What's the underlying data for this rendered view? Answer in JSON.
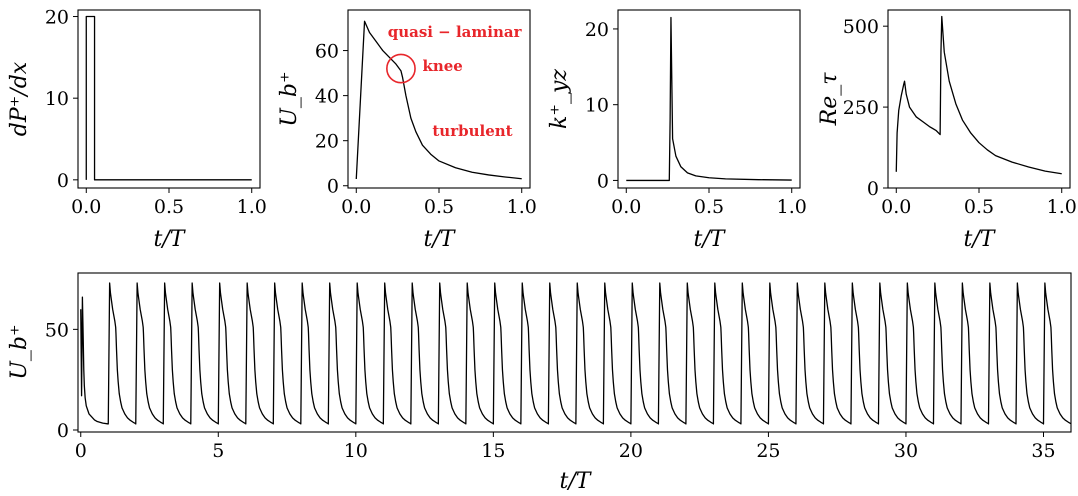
{
  "chart_data": [
    {
      "id": "p1",
      "type": "line",
      "ylabel": "dP⁺/dx",
      "xlabel": "t/T",
      "xlim": [
        -0.05,
        1.05
      ],
      "ylim": [
        -1,
        20.8
      ],
      "xticks": [
        0,
        0.5,
        1
      ],
      "xtick_labels": [
        "0.0",
        "0.5",
        "1.0"
      ],
      "yticks": [
        0,
        10,
        20
      ],
      "ytick_labels": [
        "0",
        "10",
        "20"
      ],
      "x": [
        0,
        0,
        0.05,
        0.05,
        1.0
      ],
      "y": [
        0,
        20,
        20,
        0,
        0
      ],
      "annotations": []
    },
    {
      "id": "p2",
      "type": "line",
      "ylabel": "U_b⁺",
      "xlabel": "t/T",
      "xlim": [
        -0.05,
        1.05
      ],
      "ylim": [
        -1,
        78
      ],
      "xticks": [
        0,
        0.5,
        1
      ],
      "xtick_labels": [
        "0.0",
        "0.5",
        "1.0"
      ],
      "yticks": [
        0,
        20,
        40,
        60
      ],
      "ytick_labels": [
        "0",
        "20",
        "40",
        "60"
      ],
      "x": [
        0,
        0.05,
        0.08,
        0.12,
        0.16,
        0.2,
        0.24,
        0.27,
        0.28,
        0.3,
        0.33,
        0.36,
        0.4,
        0.45,
        0.5,
        0.6,
        0.7,
        0.8,
        0.9,
        1.0
      ],
      "y": [
        3,
        73,
        68,
        64,
        60,
        57,
        54,
        51,
        48,
        40,
        30,
        24,
        18,
        14,
        11,
        8,
        6,
        4.8,
        3.9,
        3.1
      ],
      "annotations": [
        {
          "text": "quasi − laminar",
          "x": 0.19,
          "y": 66
        },
        {
          "text": "knee",
          "x": 0.4,
          "y": 51
        },
        {
          "text": "turbulent",
          "x": 0.46,
          "y": 22
        }
      ],
      "circle": {
        "x": 0.27,
        "y": 52,
        "r": 0.085
      }
    },
    {
      "id": "p3",
      "type": "line",
      "ylabel": "k⁺_yz",
      "xlabel": "t/T",
      "xlim": [
        -0.05,
        1.05
      ],
      "ylim": [
        -1,
        22.5
      ],
      "xticks": [
        0,
        0.5,
        1
      ],
      "xtick_labels": [
        "0.0",
        "0.5",
        "1.0"
      ],
      "yticks": [
        0,
        10,
        20
      ],
      "ytick_labels": [
        "0",
        "10",
        "20"
      ],
      "x": [
        0,
        0.26,
        0.265,
        0.27,
        0.28,
        0.3,
        0.33,
        0.37,
        0.42,
        0.5,
        0.6,
        0.8,
        1.0
      ],
      "y": [
        0,
        0,
        8,
        21.5,
        5.5,
        3.2,
        1.8,
        1.0,
        0.6,
        0.35,
        0.2,
        0.1,
        0.05
      ],
      "annotations": []
    },
    {
      "id": "p4",
      "type": "line",
      "ylabel": "Re_τ",
      "xlabel": "t/T",
      "xlim": [
        -0.05,
        1.05
      ],
      "ylim": [
        0,
        550
      ],
      "xticks": [
        0,
        0.5,
        1
      ],
      "xtick_labels": [
        "0.0",
        "0.5",
        "1.0"
      ],
      "yticks": [
        0,
        250,
        500
      ],
      "ytick_labels": [
        "0",
        "250",
        "500"
      ],
      "x": [
        0,
        0.005,
        0.015,
        0.03,
        0.045,
        0.05,
        0.06,
        0.08,
        0.12,
        0.16,
        0.2,
        0.24,
        0.265,
        0.27,
        0.275,
        0.29,
        0.32,
        0.36,
        0.4,
        0.45,
        0.5,
        0.55,
        0.6,
        0.7,
        0.8,
        0.9,
        1.0
      ],
      "y": [
        50,
        170,
        240,
        285,
        320,
        330,
        290,
        250,
        220,
        205,
        190,
        178,
        165,
        420,
        530,
        420,
        330,
        260,
        210,
        170,
        140,
        118,
        100,
        80,
        65,
        52,
        44
      ],
      "annotations": []
    },
    {
      "id": "p5",
      "type": "line",
      "ylabel": "U_b⁺",
      "xlabel": "t/T",
      "xlim": [
        -0.1,
        36
      ],
      "ylim": [
        -1,
        78
      ],
      "xticks": [
        0,
        5,
        10,
        15,
        20,
        25,
        30,
        35
      ],
      "xtick_labels": [
        "0",
        "5",
        "10",
        "15",
        "20",
        "25",
        "30",
        "35"
      ],
      "yticks": [
        0,
        50
      ],
      "ytick_labels": [
        "0",
        "50"
      ],
      "periodic": {
        "periods": 36,
        "t": [
          0,
          0.05,
          0.08,
          0.12,
          0.16,
          0.2,
          0.24,
          0.27,
          0.28,
          0.3,
          0.33,
          0.36,
          0.4,
          0.45,
          0.5,
          0.6,
          0.7,
          0.8,
          0.9,
          0.999
        ],
        "u": [
          3,
          73,
          68,
          64,
          60,
          57,
          54,
          51,
          48,
          40,
          30,
          24,
          18,
          14,
          11,
          8,
          6,
          4.8,
          3.9,
          3.1
        ]
      },
      "initial": {
        "x": [
          0,
          0.03,
          0.06,
          0.09,
          0.11,
          0.13,
          0.16,
          0.2,
          0.25,
          0.3,
          0.4,
          0.5,
          0.6,
          0.8,
          1.0
        ],
        "y": [
          60,
          17,
          66,
          45,
          30,
          22,
          16,
          12,
          10,
          8,
          6.5,
          5,
          4.2,
          3.4,
          3
        ]
      },
      "annotations": []
    }
  ]
}
